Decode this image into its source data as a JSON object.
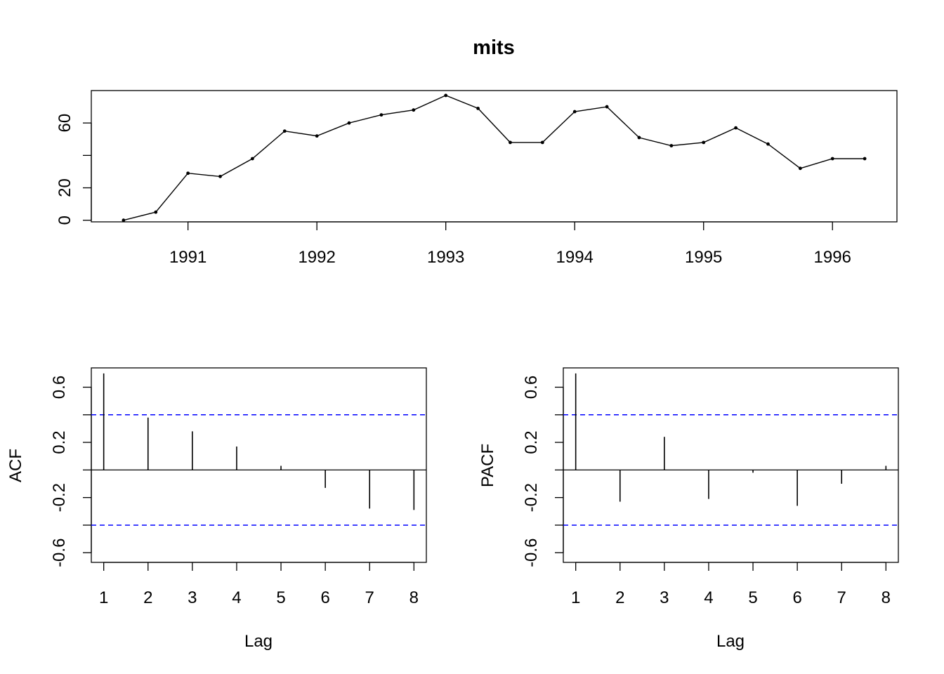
{
  "chart_data": [
    {
      "type": "line",
      "title": "mits",
      "xlabel": "",
      "ylabel": "",
      "x_ticks": [
        1991,
        1992,
        1993,
        1994,
        1995,
        1996
      ],
      "y_ticks": [
        0,
        20,
        60
      ],
      "x_tick_labels": [
        "1991",
        "1992",
        "1993",
        "1994",
        "1995",
        "1996"
      ],
      "y_tick_labels": [
        "0",
        "20",
        "60"
      ],
      "xlim": [
        1990.25,
        1996.5
      ],
      "ylim": [
        -1,
        80
      ],
      "points_marked": true,
      "series": [
        {
          "x": [
            1990.5,
            1990.75,
            1991.0,
            1991.25,
            1991.5,
            1991.75,
            1992.0,
            1992.25,
            1992.5,
            1992.75,
            1993.0,
            1993.25,
            1993.5,
            1993.75,
            1994.0,
            1994.25,
            1994.5,
            1994.75,
            1995.0,
            1995.25,
            1995.5,
            1995.75,
            1996.0,
            1996.25
          ],
          "values": [
            0,
            5,
            29,
            27,
            38,
            55,
            52,
            60,
            65,
            68,
            77,
            69,
            48,
            48,
            67,
            70,
            51,
            46,
            48,
            57,
            47,
            32,
            38,
            38
          ]
        }
      ]
    },
    {
      "type": "bar",
      "title": "",
      "xlabel": "Lag",
      "ylabel": "ACF",
      "x_tick_labels": [
        "1",
        "2",
        "3",
        "4",
        "5",
        "6",
        "7",
        "8"
      ],
      "y_tick_labels": [
        "-0.6",
        "-0.2",
        "0.2",
        "0.6"
      ],
      "y_ticks": [
        -0.6,
        -0.2,
        0.2,
        0.6
      ],
      "xlim": [
        0.72,
        8.28
      ],
      "ylim": [
        -0.67,
        0.74
      ],
      "ci": 0.4,
      "ci_color": "#0000ff",
      "categories": [
        1,
        2,
        3,
        4,
        5,
        6,
        7,
        8
      ],
      "values": [
        0.7,
        0.38,
        0.28,
        0.17,
        0.03,
        -0.13,
        -0.28,
        -0.29
      ]
    },
    {
      "type": "bar",
      "title": "",
      "xlabel": "Lag",
      "ylabel": "PACF",
      "x_tick_labels": [
        "1",
        "2",
        "3",
        "4",
        "5",
        "6",
        "7",
        "8"
      ],
      "y_tick_labels": [
        "-0.6",
        "-0.2",
        "0.2",
        "0.6"
      ],
      "y_ticks": [
        -0.6,
        -0.2,
        0.2,
        0.6
      ],
      "xlim": [
        0.72,
        8.28
      ],
      "ylim": [
        -0.67,
        0.74
      ],
      "ci": 0.4,
      "ci_color": "#0000ff",
      "categories": [
        1,
        2,
        3,
        4,
        5,
        6,
        7,
        8
      ],
      "values": [
        0.7,
        -0.23,
        0.24,
        -0.21,
        -0.02,
        -0.26,
        -0.1,
        0.03
      ]
    }
  ]
}
